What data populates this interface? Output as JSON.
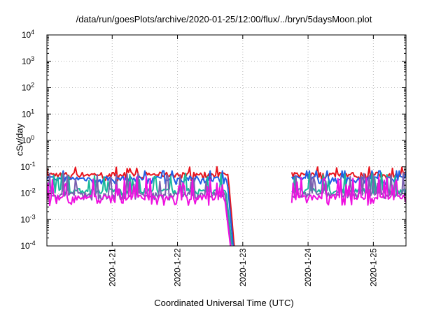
{
  "chart_data": {
    "type": "line",
    "title": "/data/run/goesPlots/archive/2020-01-25/12:00/flux/../bryn/5daysMoon.plot",
    "xlabel": "Coordinated Universal Time (UTC)",
    "ylabel": "cSv/day",
    "yscale": "log",
    "ylim": [
      0.0001,
      10000
    ],
    "xlim": [
      "2020-01-20 00:00",
      "2020-01-25 12:00"
    ],
    "grid": true,
    "x_tick_labels": [
      "2020-1-21",
      "2020-1-22",
      "2020-1-23",
      "2020-1-24",
      "2020-1-25"
    ],
    "y_ticks": [
      {
        "value": 0.0001,
        "base": "10",
        "exp": "-4"
      },
      {
        "value": 0.001,
        "base": "10",
        "exp": "-3"
      },
      {
        "value": 0.01,
        "base": "10",
        "exp": "-2"
      },
      {
        "value": 0.1,
        "base": "10",
        "exp": "-1"
      },
      {
        "value": 1,
        "base": "10",
        "exp": "0"
      },
      {
        "value": 10,
        "base": "10",
        "exp": "1"
      },
      {
        "value": 100,
        "base": "10",
        "exp": "2"
      },
      {
        "value": 1000,
        "base": "10",
        "exp": "3"
      },
      {
        "value": 10000,
        "base": "10",
        "exp": "4"
      }
    ],
    "series": [
      {
        "color": "#e8141c",
        "base": 0.05,
        "low": 0.035,
        "high": 0.085,
        "drop_end": "2020-01-22 21:06",
        "rise_start": "2020-01-23 17:52"
      },
      {
        "color": "#1e5fe6",
        "base": 0.035,
        "low": 0.025,
        "high": 0.07,
        "drop_end": "2020-01-22 20:44",
        "rise_start": "2020-01-23 17:52"
      },
      {
        "color": "#18b89a",
        "base": 0.012,
        "low": 0.009,
        "high": 0.06,
        "drop_end": "2020-01-22 20:22",
        "rise_start": "2020-01-23 17:52"
      },
      {
        "color": "#7a60b0",
        "base": 0.0085,
        "low": 0.0065,
        "high": 0.06,
        "drop_end": "2020-01-22 20:00",
        "rise_start": "2020-01-23 17:52"
      },
      {
        "color": "#ee10e0",
        "base": 0.0068,
        "low": 0.004,
        "high": 0.045,
        "drop_end": "2020-01-22 19:49",
        "rise_start": "2020-01-23 17:52"
      }
    ]
  }
}
